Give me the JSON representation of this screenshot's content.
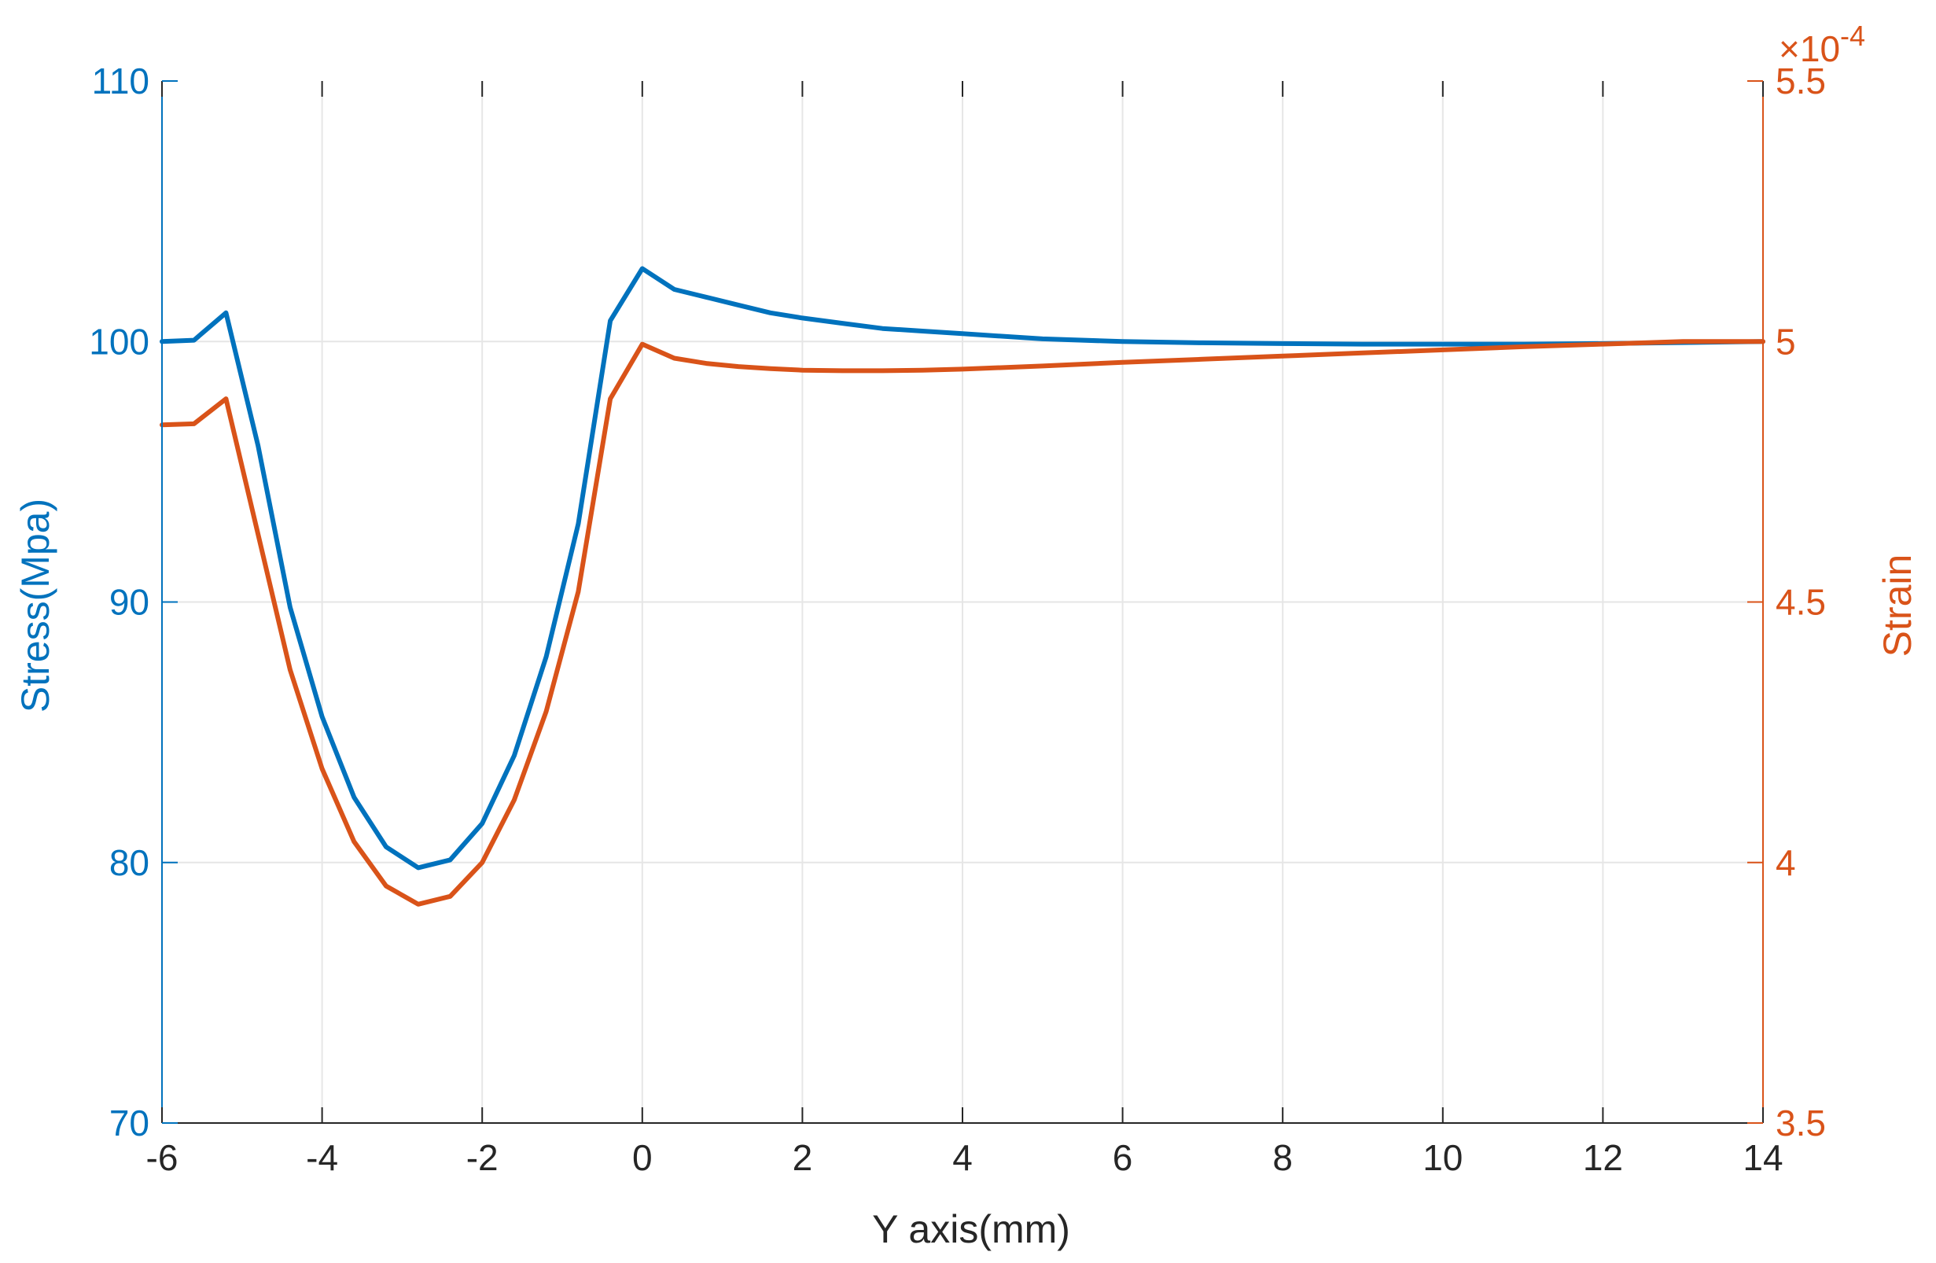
{
  "chart_data": {
    "type": "line",
    "title": "",
    "xlabel": "Y axis(mm)",
    "ylabel_left": "Stress(Mpa)",
    "ylabel_right": "Strain",
    "right_axis_exponent": "×10",
    "right_axis_exponent_power": "-4",
    "xlim": [
      -6,
      14
    ],
    "ylim_left": [
      70,
      110
    ],
    "ylim_right": [
      3.5,
      5.5
    ],
    "x_ticks": [
      "-6",
      "-4",
      "-2",
      "0",
      "2",
      "4",
      "6",
      "8",
      "10",
      "12",
      "14"
    ],
    "x_tick_values": [
      -6,
      -4,
      -2,
      0,
      2,
      4,
      6,
      8,
      10,
      12,
      14
    ],
    "y_left_ticks": [
      "70",
      "80",
      "90",
      "100",
      "110"
    ],
    "y_left_tick_values": [
      70,
      80,
      90,
      100,
      110
    ],
    "y_right_ticks": [
      "3.5",
      "4",
      "4.5",
      "5",
      "5.5"
    ],
    "y_right_tick_values": [
      3.5,
      4.0,
      4.5,
      5.0,
      5.5
    ],
    "grid": true,
    "colors": {
      "stress": "#0072BD",
      "strain": "#D95319",
      "grid": "#e6e6e6",
      "axis": "#262626"
    },
    "series": [
      {
        "axis": "left",
        "x": [
          -6,
          -5.6,
          -5.2,
          -4.8,
          -4.4,
          -4.0,
          -3.6,
          -3.2,
          -2.8,
          -2.4,
          -2.0,
          -1.6,
          -1.2,
          -0.8,
          -0.4,
          0.0,
          0.4,
          0.8,
          1.2,
          1.6,
          2.0,
          2.5,
          3.0,
          3.5,
          4.0,
          5.0,
          6.0,
          7.0,
          8.0,
          9.0,
          10.0,
          11.0,
          12.0,
          13.0,
          14.0
        ],
        "values": [
          100.0,
          100.05,
          101.1,
          96.0,
          89.8,
          85.6,
          82.5,
          80.6,
          79.8,
          80.1,
          81.5,
          84.1,
          87.9,
          93.0,
          100.8,
          102.8,
          102.0,
          101.7,
          101.4,
          101.1,
          100.9,
          100.7,
          100.5,
          100.4,
          100.3,
          100.1,
          100.0,
          99.95,
          99.92,
          99.9,
          99.9,
          99.9,
          99.92,
          99.96,
          100.0
        ]
      },
      {
        "axis": "right",
        "x": [
          -6,
          -5.6,
          -5.2,
          -4.8,
          -4.4,
          -4.0,
          -3.6,
          -3.2,
          -2.8,
          -2.4,
          -2.0,
          -1.6,
          -1.2,
          -0.8,
          -0.4,
          0.0,
          0.4,
          0.8,
          1.2,
          1.6,
          2.0,
          2.5,
          3.0,
          3.5,
          4.0,
          5.0,
          6.0,
          7.0,
          8.0,
          9.0,
          10.0,
          11.0,
          12.0,
          13.0,
          14.0
        ],
        "values": [
          4.84,
          4.842,
          4.89,
          4.63,
          4.37,
          4.18,
          4.04,
          3.955,
          3.92,
          3.935,
          4.0,
          4.12,
          4.29,
          4.52,
          4.89,
          4.995,
          4.968,
          4.958,
          4.952,
          4.948,
          4.945,
          4.944,
          4.944,
          4.945,
          4.947,
          4.953,
          4.96,
          4.966,
          4.972,
          4.978,
          4.984,
          4.99,
          4.995,
          5.0,
          5.0
        ]
      }
    ]
  }
}
